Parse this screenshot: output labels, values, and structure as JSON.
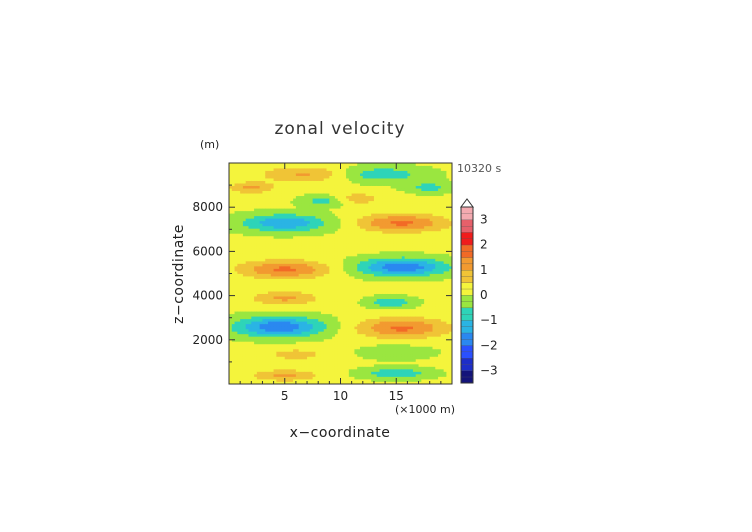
{
  "chart_data": {
    "type": "heatmap",
    "title": "zonal velocity",
    "xlabel": "x−coordinate",
    "ylabel": "z−coordinate",
    "x_units": "(×1000 m)",
    "y_units": "(m)",
    "time_label": "10320 s",
    "xlim": [
      0,
      20
    ],
    "ylim": [
      0,
      10000
    ],
    "x_ticks": [
      5,
      10,
      15
    ],
    "y_ticks": [
      2000,
      4000,
      6000,
      8000
    ],
    "x_tick_labels": [
      "5",
      "10",
      "15"
    ],
    "y_tick_labels": [
      "2000",
      "4000",
      "6000",
      "8000"
    ],
    "background_value": 0.1,
    "features": [
      {
        "x": 5,
        "z": 400,
        "value": 1.0,
        "rx": 3,
        "rz": 250
      },
      {
        "x": 15,
        "z": 500,
        "value": -1.0,
        "rx": 3,
        "rz": 250
      },
      {
        "x": 6,
        "z": 1350,
        "value": 0.6,
        "rx": 3,
        "rz": 300
      },
      {
        "x": 15,
        "z": 1450,
        "value": -0.6,
        "rx": 3,
        "rz": 300
      },
      {
        "x": 4.5,
        "z": 2600,
        "value": -2.0,
        "rx": 4,
        "rz": 450
      },
      {
        "x": 15.5,
        "z": 2550,
        "value": 1.5,
        "rx": 4,
        "rz": 450
      },
      {
        "x": 5,
        "z": 3900,
        "value": 1.0,
        "rx": 3,
        "rz": 300
      },
      {
        "x": 14.5,
        "z": 3700,
        "value": -1.0,
        "rx": 2,
        "rz": 250
      },
      {
        "x": 5,
        "z": 5200,
        "value": 1.5,
        "rx": 4,
        "rz": 400
      },
      {
        "x": 15.5,
        "z": 5300,
        "value": -2.0,
        "rx": 4,
        "rz": 400
      },
      {
        "x": 5,
        "z": 7300,
        "value": -1.5,
        "rx": 4,
        "rz": 400
      },
      {
        "x": 15.5,
        "z": 7300,
        "value": 1.5,
        "rx": 4,
        "rz": 400
      },
      {
        "x": 2,
        "z": 8900,
        "value": 1.0,
        "rx": 2,
        "rz": 250
      },
      {
        "x": 7,
        "z": 9500,
        "value": 1.0,
        "rx": 4,
        "rz": 350
      },
      {
        "x": 13.5,
        "z": 9500,
        "value": -1.0,
        "rx": 4,
        "rz": 350
      },
      {
        "x": 8.5,
        "z": 8300,
        "value": -0.8,
        "rx": 2,
        "rz": 250
      },
      {
        "x": 11.5,
        "z": 8400,
        "value": 0.8,
        "rx": 2,
        "rz": 250
      },
      {
        "x": 18,
        "z": 8900,
        "value": -0.8,
        "rx": 2,
        "rz": 250
      }
    ],
    "colorbar": {
      "vmin": -3.5,
      "vmax": 3.5,
      "step": 0.25,
      "ticks": [
        -3,
        -2,
        -1,
        0,
        1,
        2,
        3
      ],
      "tick_labels": [
        "−3",
        "−2",
        "−1",
        "0",
        "1",
        "2",
        "3"
      ],
      "extend": "max",
      "colors": [
        {
          "max": -3.0,
          "color": "#14147a"
        },
        {
          "max": -2.5,
          "color": "#1e2ec8"
        },
        {
          "max": -2.0,
          "color": "#2a50ff"
        },
        {
          "max": -1.5,
          "color": "#2a88f0"
        },
        {
          "max": -1.0,
          "color": "#2ab4e4"
        },
        {
          "max": -0.5,
          "color": "#2ed4b8"
        },
        {
          "max": 0.0,
          "color": "#9ae640"
        },
        {
          "max": 0.5,
          "color": "#f4f43c"
        },
        {
          "max": 1.0,
          "color": "#f0c436"
        },
        {
          "max": 1.5,
          "color": "#f29a30"
        },
        {
          "max": 2.0,
          "color": "#f26a26"
        },
        {
          "max": 2.5,
          "color": "#f01c1c"
        },
        {
          "max": 3.0,
          "color": "#e6606a"
        },
        {
          "max": 3.5,
          "color": "#f4aab0"
        }
      ]
    }
  }
}
